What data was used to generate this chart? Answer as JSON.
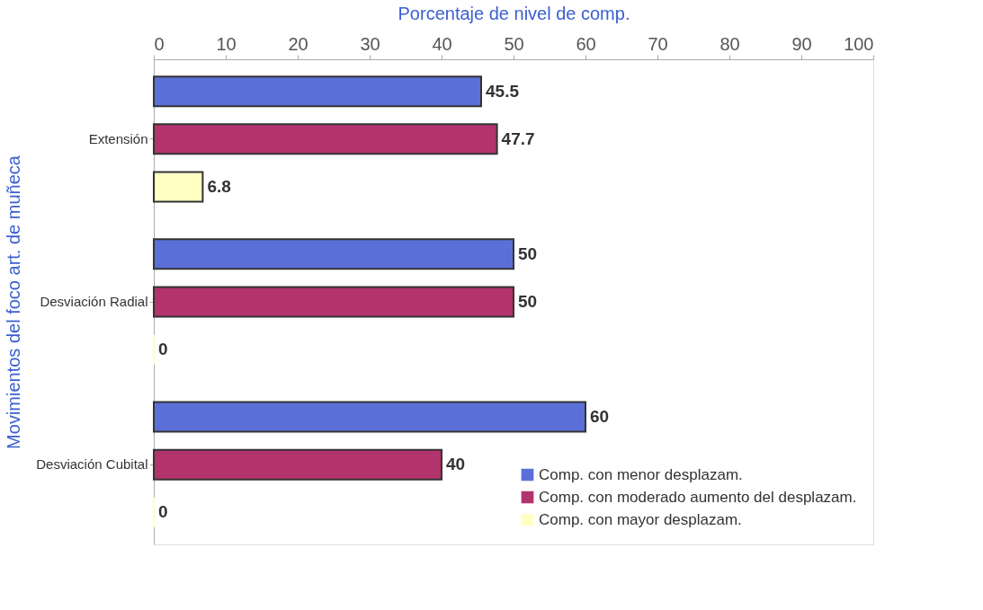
{
  "chart_data": {
    "type": "bar",
    "orientation": "horizontal",
    "xlabel": "Porcentaje de nivel de comp.",
    "ylabel": "Movimientos del foco art. de muñeca",
    "categories": [
      "Extensión",
      "Desviación Radial",
      "Desviación Cubital"
    ],
    "series": [
      {
        "name": "Comp. con menor desplazam.",
        "color": "#5b6fd8",
        "values": [
          45.5,
          50,
          60
        ]
      },
      {
        "name": "Comp. con moderado aumento del desplazam.",
        "color": "#b3336d",
        "values": [
          47.7,
          50,
          40
        ]
      },
      {
        "name": "Comp. con mayor desplazam.",
        "color": "#ffffc4",
        "values": [
          6.8,
          0,
          0
        ]
      }
    ],
    "xlim": [
      0,
      100
    ],
    "xticks": [
      0,
      10,
      20,
      30,
      40,
      50,
      60,
      70,
      80,
      90,
      100
    ],
    "data_labels": true,
    "legend": "bottom right",
    "grid": false
  }
}
